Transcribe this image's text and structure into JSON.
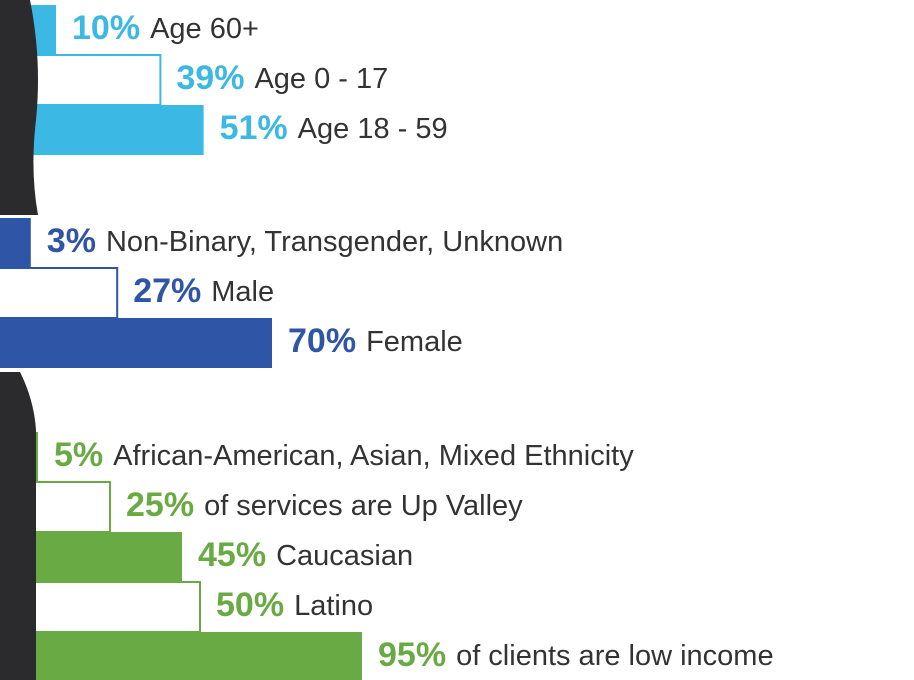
{
  "chart_data": [
    {
      "type": "bar",
      "categories": [
        "Age 60+",
        "Age 0 - 17",
        "Age 18 - 59"
      ],
      "values": [
        10,
        39,
        51
      ],
      "value_labels": [
        "10%",
        "39%",
        "51%"
      ],
      "color": "#3bb8e4"
    },
    {
      "type": "bar",
      "categories": [
        "Non-Binary, Transgender, Unknown",
        "Male",
        "Female"
      ],
      "values": [
        3,
        27,
        70
      ],
      "value_labels": [
        "3%",
        "27%",
        "70%"
      ],
      "color": "#2f55a6"
    },
    {
      "type": "bar",
      "categories": [
        "African-American, Asian, Mixed Ethnicity",
        "of services are Up Valley",
        "Caucasian",
        "Latino",
        "of clients are low income"
      ],
      "values": [
        5,
        25,
        45,
        50,
        95
      ],
      "value_labels": [
        "5%",
        "25%",
        "45%",
        "50%",
        "95%"
      ],
      "color": "#6aaa45"
    }
  ]
}
